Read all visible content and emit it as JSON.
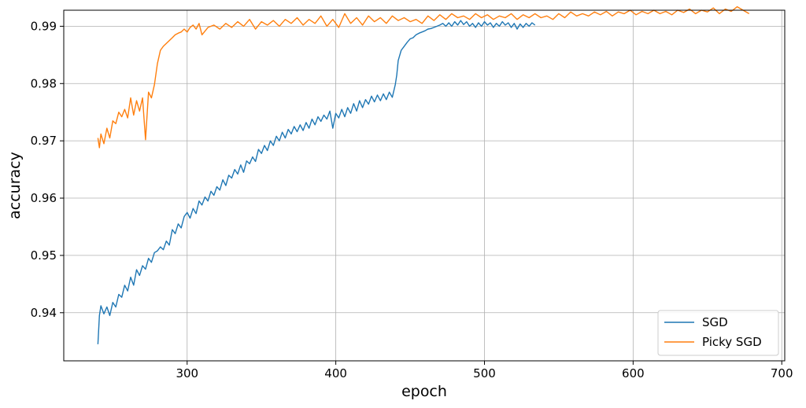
{
  "chart_data": {
    "type": "line",
    "title": "",
    "xlabel": "epoch",
    "ylabel": "accuracy",
    "xlim": [
      217,
      702
    ],
    "ylim": [
      0.9316,
      0.9928
    ],
    "xticks": [
      300,
      400,
      500,
      600,
      700
    ],
    "yticks": [
      0.94,
      0.95,
      0.96,
      0.97,
      0.98,
      0.99
    ],
    "xtick_labels": [
      "300",
      "400",
      "500",
      "600",
      "700"
    ],
    "ytick_labels": [
      "0.94",
      "0.95",
      "0.96",
      "0.97",
      "0.98",
      "0.99"
    ],
    "grid": true,
    "legend_position": "lower-right",
    "series": [
      {
        "name": "SGD",
        "color": "#1f77b4",
        "x": [
          240,
          241,
          242,
          244,
          246,
          248,
          250,
          252,
          254,
          256,
          258,
          260,
          262,
          264,
          266,
          268,
          270,
          272,
          274,
          276,
          278,
          280,
          282,
          284,
          286,
          288,
          290,
          292,
          294,
          296,
          298,
          300,
          302,
          304,
          306,
          308,
          310,
          312,
          314,
          316,
          318,
          320,
          322,
          324,
          326,
          328,
          330,
          332,
          334,
          336,
          338,
          340,
          342,
          344,
          346,
          348,
          350,
          352,
          354,
          356,
          358,
          360,
          362,
          364,
          366,
          368,
          370,
          372,
          374,
          376,
          378,
          380,
          382,
          384,
          386,
          388,
          390,
          392,
          394,
          396,
          398,
          400,
          402,
          404,
          406,
          408,
          410,
          412,
          414,
          416,
          418,
          420,
          422,
          424,
          426,
          428,
          430,
          432,
          434,
          436,
          438,
          440,
          441,
          442,
          444,
          446,
          448,
          450,
          452,
          454,
          456,
          458,
          460,
          462,
          464,
          466,
          468,
          470,
          472,
          474,
          476,
          478,
          480,
          482,
          484,
          486,
          488,
          490,
          492,
          494,
          496,
          498,
          500,
          502,
          504,
          506,
          508,
          510,
          512,
          514,
          516,
          518,
          520,
          522,
          524,
          526,
          528,
          530,
          532,
          534
        ],
        "values": [
          0.9345,
          0.9395,
          0.9412,
          0.9398,
          0.941,
          0.9395,
          0.9418,
          0.941,
          0.9432,
          0.9427,
          0.9448,
          0.9438,
          0.9462,
          0.9448,
          0.9475,
          0.9465,
          0.9482,
          0.9476,
          0.9495,
          0.9488,
          0.9505,
          0.9508,
          0.9515,
          0.951,
          0.9525,
          0.9518,
          0.9545,
          0.9538,
          0.9555,
          0.9548,
          0.9568,
          0.9575,
          0.9565,
          0.9582,
          0.9573,
          0.9595,
          0.9588,
          0.9602,
          0.9595,
          0.9612,
          0.9605,
          0.962,
          0.9614,
          0.9632,
          0.9622,
          0.964,
          0.9635,
          0.965,
          0.9642,
          0.9658,
          0.9645,
          0.9665,
          0.966,
          0.9672,
          0.9664,
          0.9685,
          0.9678,
          0.9692,
          0.9683,
          0.97,
          0.9692,
          0.9708,
          0.97,
          0.9715,
          0.9705,
          0.972,
          0.9712,
          0.9725,
          0.9716,
          0.9728,
          0.9718,
          0.9732,
          0.9722,
          0.9738,
          0.9728,
          0.9742,
          0.9734,
          0.9745,
          0.9738,
          0.9752,
          0.9722,
          0.9748,
          0.974,
          0.9755,
          0.9742,
          0.9758,
          0.9748,
          0.9765,
          0.9752,
          0.977,
          0.9758,
          0.9772,
          0.9764,
          0.9778,
          0.9768,
          0.978,
          0.977,
          0.9782,
          0.9772,
          0.9785,
          0.9776,
          0.9798,
          0.9815,
          0.984,
          0.9858,
          0.9865,
          0.9872,
          0.9878,
          0.988,
          0.9885,
          0.9888,
          0.989,
          0.9892,
          0.9895,
          0.9896,
          0.9898,
          0.99,
          0.9902,
          0.9905,
          0.99,
          0.9906,
          0.99,
          0.9908,
          0.9902,
          0.991,
          0.9903,
          0.9908,
          0.99,
          0.9905,
          0.9898,
          0.9906,
          0.99,
          0.9908,
          0.9902,
          0.9906,
          0.9898,
          0.9905,
          0.99,
          0.9908,
          0.9902,
          0.9906,
          0.9898,
          0.9905,
          0.9895,
          0.9904,
          0.9898,
          0.9905,
          0.99,
          0.9906,
          0.9902
        ]
      },
      {
        "name": "Picky SGD",
        "color": "#ff7f0e",
        "x": [
          240,
          241,
          242,
          244,
          246,
          248,
          250,
          252,
          254,
          256,
          258,
          260,
          262,
          264,
          266,
          268,
          270,
          272,
          274,
          276,
          278,
          280,
          282,
          284,
          286,
          288,
          290,
          292,
          294,
          296,
          298,
          300,
          302,
          304,
          306,
          308,
          310,
          314,
          318,
          322,
          326,
          330,
          334,
          338,
          342,
          346,
          350,
          354,
          358,
          362,
          366,
          370,
          374,
          378,
          382,
          386,
          390,
          394,
          398,
          402,
          406,
          410,
          414,
          418,
          422,
          426,
          430,
          434,
          438,
          442,
          446,
          450,
          454,
          458,
          462,
          466,
          470,
          474,
          478,
          482,
          486,
          490,
          494,
          498,
          502,
          506,
          510,
          514,
          518,
          522,
          526,
          530,
          534,
          538,
          542,
          546,
          550,
          554,
          558,
          562,
          566,
          570,
          574,
          578,
          582,
          586,
          590,
          594,
          598,
          602,
          606,
          610,
          614,
          618,
          622,
          626,
          630,
          634,
          638,
          642,
          646,
          650,
          654,
          658,
          662,
          666,
          670,
          674,
          678
        ],
        "values": [
          0.9705,
          0.9688,
          0.9712,
          0.9695,
          0.9722,
          0.9705,
          0.9735,
          0.973,
          0.975,
          0.9742,
          0.9755,
          0.974,
          0.9775,
          0.9745,
          0.977,
          0.9752,
          0.9775,
          0.9702,
          0.9785,
          0.9775,
          0.9798,
          0.9835,
          0.9858,
          0.9865,
          0.987,
          0.9875,
          0.988,
          0.9885,
          0.9888,
          0.989,
          0.9895,
          0.989,
          0.9898,
          0.9902,
          0.9895,
          0.9905,
          0.9885,
          0.9898,
          0.9902,
          0.9895,
          0.9905,
          0.9898,
          0.9908,
          0.99,
          0.9912,
          0.9895,
          0.9908,
          0.9902,
          0.991,
          0.99,
          0.9912,
          0.9905,
          0.9915,
          0.9902,
          0.9912,
          0.9905,
          0.9918,
          0.99,
          0.9912,
          0.9898,
          0.9922,
          0.9905,
          0.9915,
          0.9902,
          0.9918,
          0.9908,
          0.9915,
          0.9905,
          0.9918,
          0.991,
          0.9915,
          0.9908,
          0.9912,
          0.9905,
          0.9918,
          0.991,
          0.992,
          0.9912,
          0.9922,
          0.9915,
          0.9918,
          0.9912,
          0.9922,
          0.9915,
          0.992,
          0.9912,
          0.9918,
          0.9915,
          0.9922,
          0.9912,
          0.992,
          0.9915,
          0.9922,
          0.9915,
          0.9918,
          0.9912,
          0.9922,
          0.9915,
          0.9925,
          0.9918,
          0.9922,
          0.9918,
          0.9925,
          0.992,
          0.9926,
          0.9918,
          0.9925,
          0.9922,
          0.9928,
          0.992,
          0.9926,
          0.9922,
          0.9928,
          0.9922,
          0.9926,
          0.992,
          0.9928,
          0.9924,
          0.993,
          0.9922,
          0.9928,
          0.9925,
          0.9932,
          0.9922,
          0.993,
          0.9926,
          0.9934,
          0.9928,
          0.9922
        ]
      }
    ]
  }
}
